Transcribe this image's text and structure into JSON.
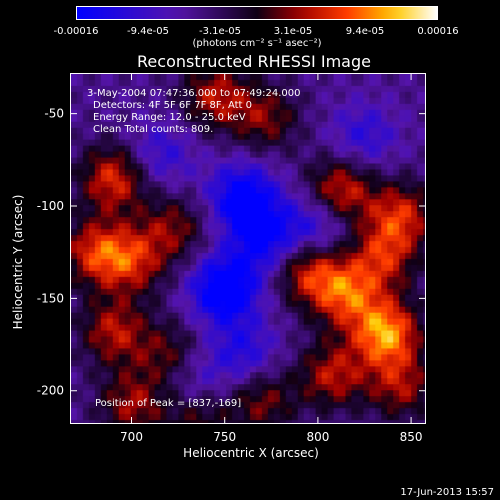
{
  "colorbar": {
    "tick_labels": [
      "-0.00016",
      "-9.4e-05",
      "-3.1e-05",
      "3.1e-05",
      "9.4e-05",
      "0.00016"
    ],
    "units": "(photons cm⁻² s⁻¹ asec⁻²)",
    "range": [
      -0.00016,
      0.00016
    ]
  },
  "annotations": {
    "time_range": "3-May-2004 07:47:36.000 to 07:49:24.000",
    "detectors": "Detectors: 4F 5F 6F 7F 8F, Att 0",
    "energy_range": "Energy Range: 12.0 - 25.0 keV",
    "clean_counts": "Clean     Total counts: 809.",
    "peak": "Position of Peak = [837,-169]"
  },
  "timestamp": "17-Jun-2013 15:57",
  "colors": {
    "background": "#000000",
    "foreground": "#ffffff"
  },
  "chart_data": {
    "type": "heatmap",
    "title": "Reconstructed RHESSI Image",
    "xlabel": "Heliocentric X (arcsec)",
    "ylabel": "Heliocentric Y (arcsec)",
    "xlim": [
      667,
      858
    ],
    "ylim": [
      -218,
      -28
    ],
    "xticks": [
      700,
      750,
      800,
      850
    ],
    "yticks": [
      -50,
      -100,
      -150,
      -200
    ],
    "colormap": "blue-purple-black-red-yellow-white",
    "peak_position": [
      837,
      -169
    ],
    "hotspots": [
      {
        "x": 690,
        "y": -85,
        "value": 0.00012
      },
      {
        "x": 680,
        "y": -125,
        "value": 0.00011
      },
      {
        "x": 700,
        "y": -130,
        "value": 0.0001
      },
      {
        "x": 722,
        "y": -112,
        "value": 8e-05
      },
      {
        "x": 745,
        "y": -40,
        "value": 0.0001
      },
      {
        "x": 772,
        "y": -52,
        "value": 8e-05
      },
      {
        "x": 812,
        "y": -92,
        "value": 0.00012
      },
      {
        "x": 845,
        "y": -105,
        "value": 0.00011
      },
      {
        "x": 835,
        "y": -128,
        "value": 0.0001
      },
      {
        "x": 795,
        "y": -135,
        "value": 0.00011
      },
      {
        "x": 815,
        "y": -148,
        "value": 0.00012
      },
      {
        "x": 837,
        "y": -169,
        "value": 0.00016
      },
      {
        "x": 808,
        "y": -192,
        "value": 0.0001
      },
      {
        "x": 845,
        "y": -198,
        "value": 9e-05
      },
      {
        "x": 690,
        "y": -168,
        "value": 0.0001
      },
      {
        "x": 720,
        "y": -182,
        "value": 8e-05
      },
      {
        "x": 700,
        "y": -208,
        "value": 9e-05
      },
      {
        "x": 770,
        "y": -206,
        "value": 8e-05
      },
      {
        "x": 735,
        "y": -215,
        "value": 7e-05
      },
      {
        "x": 760,
        "y": -95,
        "value": -0.00012
      },
      {
        "x": 750,
        "y": -145,
        "value": -0.00014
      },
      {
        "x": 772,
        "y": -118,
        "value": -0.0001
      },
      {
        "x": 800,
        "y": -110,
        "value": -8e-05
      },
      {
        "x": 825,
        "y": -62,
        "value": -6e-05
      },
      {
        "x": 715,
        "y": -72,
        "value": -6e-05
      },
      {
        "x": 760,
        "y": -180,
        "value": -7e-05
      },
      {
        "x": 732,
        "y": -195,
        "value": -6e-05
      }
    ]
  }
}
